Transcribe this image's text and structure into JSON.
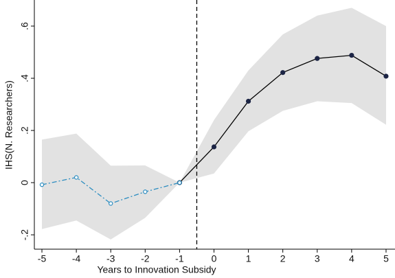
{
  "chart_data": {
    "type": "event-study",
    "x_label": "Years to Innovation Subsidy",
    "y_label": "IHS(N. Researchers)",
    "xlim": [
      -5.22,
      5.26
    ],
    "ylim": [
      -0.255,
      0.7
    ],
    "xticks": [
      -5,
      -4,
      -3,
      -2,
      -1,
      0,
      1,
      2,
      3,
      4,
      5
    ],
    "yticks": [
      {
        "value": -0.2,
        "label": "-.2"
      },
      0,
      {
        "value": 0.2,
        "label": ".2"
      },
      {
        "value": 0.4,
        "label": ".4"
      },
      {
        "value": 0.6,
        "label": ".6"
      }
    ],
    "vline": -0.5,
    "band": {
      "color": "#e2e2e2",
      "x": [
        -5,
        -4,
        -3,
        -2,
        -1,
        0,
        1,
        2,
        3,
        4,
        5
      ],
      "upper": [
        0.165,
        0.188,
        0.065,
        0.066,
        0,
        0.24,
        0.43,
        0.568,
        0.64,
        0.67,
        0.6
      ],
      "lower": [
        -0.178,
        -0.145,
        -0.218,
        -0.135,
        0,
        0.035,
        0.197,
        0.275,
        0.312,
        0.305,
        0.222
      ]
    },
    "series": [
      {
        "color": "#1c2545",
        "line_color": "#000000",
        "dash": "solid",
        "marker": "filled",
        "x": [
          -1,
          0,
          1,
          2,
          3,
          4,
          5
        ],
        "values": [
          0,
          0.137,
          0.312,
          0.422,
          0.476,
          0.488,
          0.408
        ]
      },
      {
        "color": "#2a8cc0",
        "line_color": "#2a8cc0",
        "dash": "dashdot",
        "marker": "hollow",
        "x": [
          -5,
          -4,
          -3,
          -2,
          -1
        ],
        "values": [
          -0.008,
          0.02,
          -0.08,
          -0.035,
          0
        ]
      }
    ]
  }
}
